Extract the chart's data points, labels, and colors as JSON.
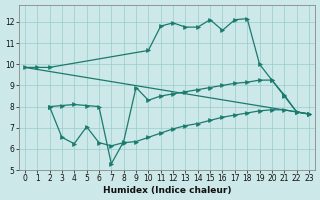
{
  "title": "",
  "xlabel": "Humidex (Indice chaleur)",
  "ylabel": "",
  "bg_color": "#cce8e8",
  "line_color": "#1a7a6e",
  "grid_color": "#99cccc",
  "xlim": [
    -0.5,
    23.5
  ],
  "ylim": [
    5,
    12.8
  ],
  "xticks": [
    0,
    1,
    2,
    3,
    4,
    5,
    6,
    7,
    8,
    9,
    10,
    11,
    12,
    13,
    14,
    15,
    16,
    17,
    18,
    19,
    20,
    21,
    22,
    23
  ],
  "yticks": [
    5,
    6,
    7,
    8,
    9,
    10,
    11,
    12
  ],
  "curve1_x": [
    0,
    1,
    2,
    10,
    11,
    12,
    13,
    14,
    15,
    16,
    17,
    18,
    19,
    20,
    21,
    22,
    23
  ],
  "curve1_y": [
    9.85,
    9.85,
    9.85,
    10.65,
    11.8,
    11.95,
    11.75,
    11.75,
    12.1,
    11.6,
    12.1,
    12.15,
    10.0,
    9.25,
    8.55,
    7.75,
    7.65
  ],
  "curve2_x": [
    0,
    23
  ],
  "curve2_y": [
    9.85,
    7.65
  ],
  "curve3_x": [
    2,
    3,
    4,
    5,
    6,
    7,
    8,
    9,
    10,
    11,
    12,
    13,
    14,
    15,
    16,
    17,
    18,
    19,
    20,
    21,
    22,
    23
  ],
  "curve3_y": [
    8.0,
    8.05,
    8.1,
    8.05,
    8.0,
    5.3,
    6.35,
    8.9,
    8.3,
    8.5,
    8.6,
    8.7,
    8.8,
    8.9,
    9.0,
    9.1,
    9.15,
    9.25,
    9.25,
    8.5,
    7.75,
    7.65
  ],
  "curve4_x": [
    2,
    3,
    4,
    5,
    6,
    7,
    8,
    9,
    10,
    11,
    12,
    13,
    14,
    15,
    16,
    17,
    18,
    19,
    20,
    21,
    22,
    23
  ],
  "curve4_y": [
    8.0,
    6.55,
    6.25,
    7.05,
    6.3,
    6.15,
    6.3,
    6.35,
    6.55,
    6.75,
    6.95,
    7.1,
    7.2,
    7.35,
    7.5,
    7.6,
    7.7,
    7.8,
    7.85,
    7.85,
    7.75,
    7.65
  ]
}
